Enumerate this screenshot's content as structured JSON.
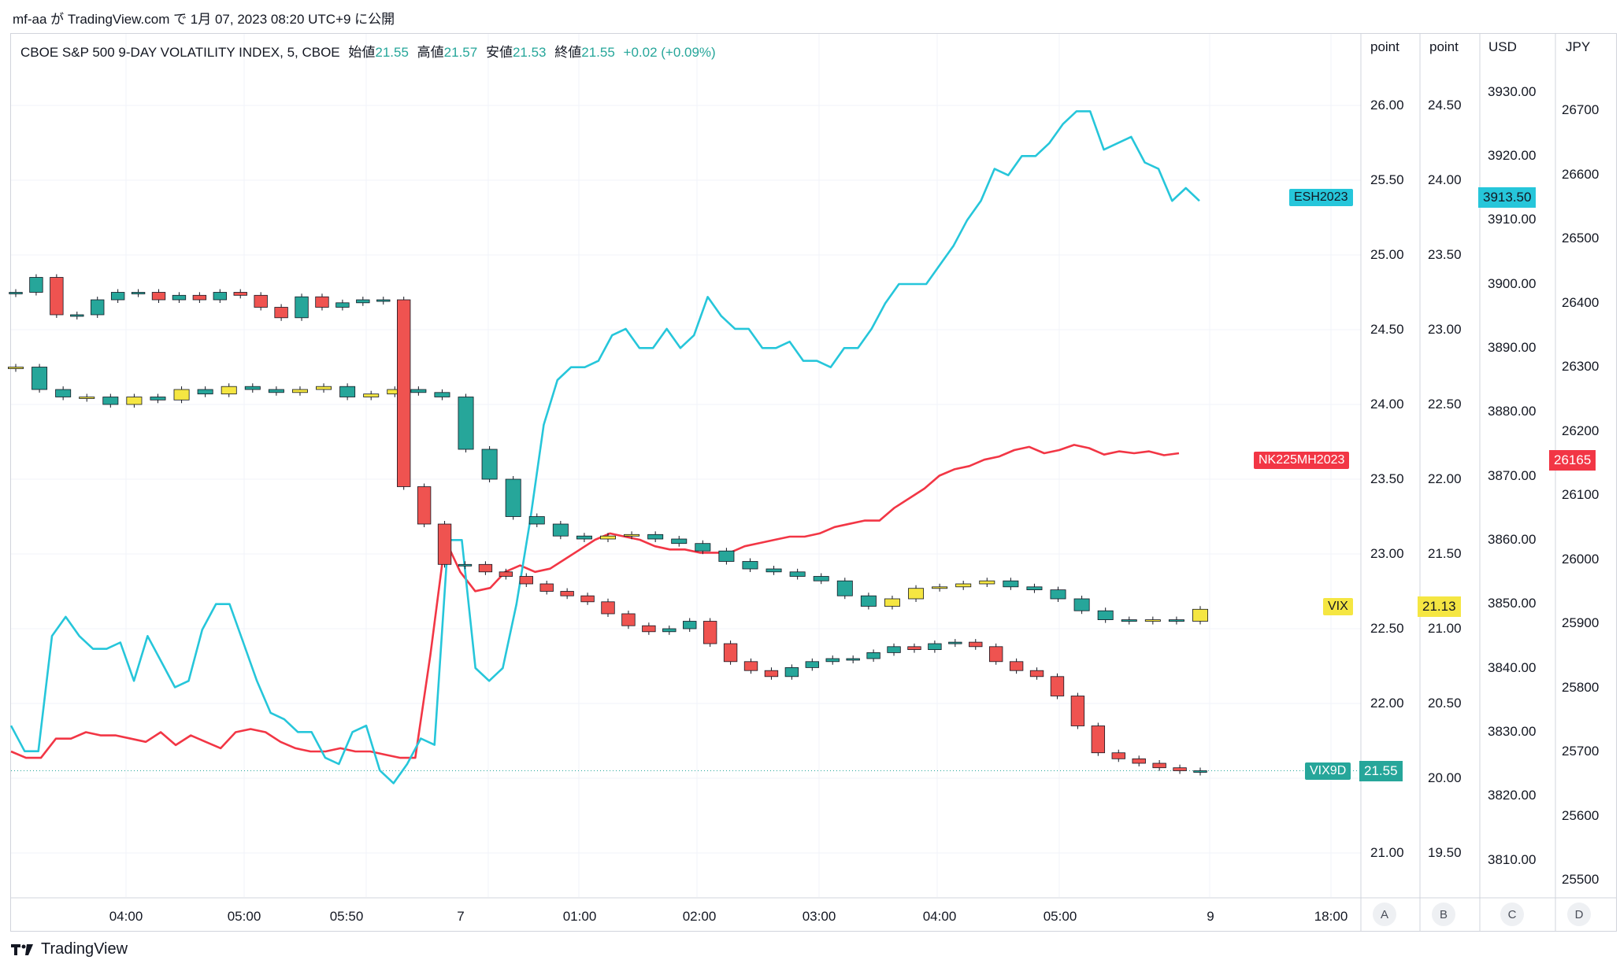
{
  "header": {
    "publish_line": "mf-aa が TradingView.com で 1月 07, 2023 08:20 UTC+9 に公開"
  },
  "legend": {
    "symbol": "CBOE S&P 500 9-DAY VOLATILITY INDEX, 5, CBOE",
    "open_label": "始値",
    "open_value": "21.55",
    "high_label": "高値",
    "high_value": "21.57",
    "low_label": "安値",
    "low_value": "21.53",
    "close_label": "終値",
    "close_value": "21.55",
    "change": "+0.02 (+0.09%)"
  },
  "axes": {
    "A": {
      "title": "point",
      "ticks": [
        "26.00",
        "25.50",
        "25.00",
        "24.50",
        "24.00",
        "23.50",
        "23.00",
        "22.50",
        "22.00",
        "21.00"
      ]
    },
    "B": {
      "title": "point",
      "ticks": [
        "24.50",
        "24.00",
        "23.50",
        "23.00",
        "22.50",
        "22.00",
        "21.50",
        "21.00",
        "20.50",
        "20.00",
        "19.50"
      ]
    },
    "C": {
      "title": "USD",
      "ticks": [
        "3930.00",
        "3920.00",
        "3910.00",
        "3900.00",
        "3890.00",
        "3880.00",
        "3870.00",
        "3860.00",
        "3850.00",
        "3840.00",
        "3830.00",
        "3820.00",
        "3810.00"
      ]
    },
    "D": {
      "title": "JPY",
      "ticks": [
        "26700",
        "26600",
        "26500",
        "26400",
        "26300",
        "26200",
        "26100",
        "26000",
        "25900",
        "25800",
        "25700",
        "25600",
        "25500"
      ]
    }
  },
  "x_ticks": [
    "04:00",
    "05:00",
    "05:50",
    "7",
    "01:00",
    "02:00",
    "03:00",
    "04:00",
    "05:00",
    "9",
    "18:00"
  ],
  "scale_buttons": [
    "A",
    "B",
    "C",
    "D"
  ],
  "series_tags": {
    "esh": "ESH2023",
    "nk": "NK225MH2023",
    "vix": "VIX",
    "vix9d": "VIX9D"
  },
  "price_tags": {
    "esh": "3913.50",
    "nk": "26165",
    "vix": "21.13",
    "vix9d": "21.55"
  },
  "footer": {
    "brand": "TradingView"
  },
  "colors": {
    "esh": "#26c6da",
    "nk": "#f23645",
    "vix": "#f5e642",
    "vix9d_up": "#26a69a",
    "vix9d_down": "#ef5350",
    "vix_body": "#f5e642"
  },
  "chart_data": {
    "type": "line",
    "series": [
      {
        "name": "ESH2023",
        "axis": "C",
        "values": [
          3831,
          3827,
          3827,
          3845,
          3848,
          3845,
          3843,
          3843,
          3844,
          3838,
          3845,
          3841,
          3837,
          3838,
          3846,
          3850,
          3850,
          3844,
          3838,
          3833,
          3832,
          3830,
          3830,
          3826,
          3825,
          3830,
          3831,
          3824,
          3822,
          3825,
          3829,
          3828,
          3860,
          3860,
          3840,
          3838,
          3840,
          3850,
          3863,
          3878,
          3885,
          3887,
          3887,
          3888,
          3892,
          3893,
          3890,
          3890,
          3893,
          3890,
          3892,
          3898,
          3895,
          3893,
          3893,
          3890,
          3890,
          3891,
          3888,
          3888,
          3887,
          3890,
          3890,
          3893,
          3897,
          3900,
          3900,
          3900,
          3903,
          3906,
          3910,
          3913,
          3918,
          3917,
          3920,
          3920,
          3922,
          3925,
          3927,
          3927,
          3921,
          3922,
          3923,
          3919,
          3918,
          3913,
          3915,
          3913
        ]
      },
      {
        "name": "NK225MH2023",
        "axis": "D",
        "values": [
          25700,
          25690,
          25690,
          25720,
          25720,
          25730,
          25725,
          25725,
          25720,
          25715,
          25730,
          25710,
          25725,
          25715,
          25705,
          25730,
          25735,
          25730,
          25715,
          25705,
          25700,
          25700,
          25705,
          25700,
          25700,
          25695,
          25690,
          25690,
          25850,
          26030,
          25980,
          25950,
          25955,
          25980,
          25990,
          25980,
          25985,
          26000,
          26015,
          26030,
          26040,
          26035,
          26030,
          26020,
          26015,
          26015,
          26010,
          26010,
          26010,
          26020,
          26025,
          26030,
          26035,
          26035,
          26040,
          26050,
          26055,
          26060,
          26060,
          26080,
          26095,
          26110,
          26130,
          26140,
          26145,
          26155,
          26160,
          26170,
          26175,
          26165,
          26170,
          26178,
          26173,
          26163,
          26168,
          26165,
          26168,
          26162,
          26165
        ]
      },
      {
        "name": "VIX",
        "axis": "B",
        "values": [
          22.75,
          22.6,
          22.55,
          22.55,
          22.5,
          22.55,
          22.53,
          22.6,
          22.57,
          22.62,
          22.6,
          22.58,
          22.6,
          22.62,
          22.55,
          22.57,
          22.6,
          22.58,
          22.55,
          22.2,
          22.0,
          21.75,
          21.7,
          21.62,
          21.6,
          21.62,
          21.63,
          21.6,
          21.57,
          21.52,
          21.45,
          21.4,
          21.38,
          21.35,
          21.32,
          21.22,
          21.15,
          21.2,
          21.27,
          21.28,
          21.3,
          21.32,
          21.28,
          21.26,
          21.2,
          21.12,
          21.06,
          21.05,
          21.06,
          21.05,
          21.13
        ]
      },
      {
        "name": "VIX9D",
        "axis": "A",
        "values": [
          24.75,
          24.85,
          24.6,
          24.6,
          24.7,
          24.75,
          24.75,
          24.7,
          24.73,
          24.7,
          24.75,
          24.73,
          24.65,
          24.58,
          24.72,
          24.65,
          24.68,
          24.7,
          24.7,
          23.45,
          23.2,
          22.93,
          22.93,
          22.88,
          22.85,
          22.8,
          22.75,
          22.72,
          22.68,
          22.6,
          22.52,
          22.48,
          22.5,
          22.55,
          22.4,
          22.28,
          22.22,
          22.18,
          22.24,
          22.28,
          22.3,
          22.3,
          22.34,
          22.38,
          22.36,
          22.4,
          22.41,
          22.38,
          22.28,
          22.22,
          22.18,
          22.05,
          21.85,
          21.67,
          21.63,
          21.6,
          21.57,
          21.55,
          21.55
        ]
      }
    ]
  }
}
